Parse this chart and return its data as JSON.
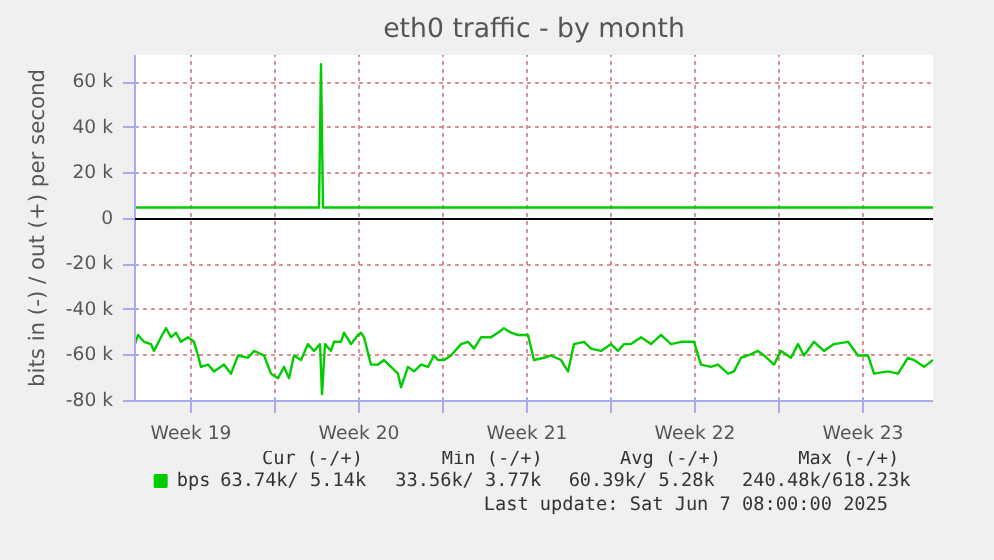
{
  "chart_data": {
    "type": "line",
    "title": "eth0 traffic - by month",
    "ylabel": "bits in (-) / out (+) per second",
    "xlim": [
      "2025-05-06T04:00",
      "2025-06-08T10:00"
    ],
    "ylim": [
      -80000,
      72000
    ],
    "xticks": [
      {
        "value": "2025-05-08T12:00",
        "label": "Week 19"
      },
      {
        "value": "2025-05-12",
        "label": null
      },
      {
        "value": "2025-05-15T12:00",
        "label": "Week 20"
      },
      {
        "value": "2025-05-19",
        "label": null
      },
      {
        "value": "2025-05-22T12:00",
        "label": "Week 21"
      },
      {
        "value": "2025-05-26",
        "label": null
      },
      {
        "value": "2025-05-29T12:00",
        "label": "Week 22"
      },
      {
        "value": "2025-06-02",
        "label": null
      },
      {
        "value": "2025-06-05T12:00",
        "label": "Week 23"
      }
    ],
    "yticks": [
      {
        "value": -80000,
        "label": "-80 k"
      },
      {
        "value": -60000,
        "label": "-60 k"
      },
      {
        "value": -40000,
        "label": "-40 k"
      },
      {
        "value": -20000,
        "label": "-20 k"
      },
      {
        "value": 0,
        "label": "0"
      },
      {
        "value": 20000,
        "label": "20 k"
      },
      {
        "value": 40000,
        "label": "40 k"
      },
      {
        "value": 60000,
        "label": "60 k"
      }
    ],
    "grid": true,
    "legend": "bottom",
    "marker": "none",
    "line_style": "solid",
    "ref_lines": [
      {
        "axis": "y",
        "value": 0,
        "label": null,
        "color": "#000000"
      }
    ],
    "series": [
      {
        "name": "bps",
        "color": "#00cc00",
        "x": [
          "2025-05-06T04:00",
          "2025-05-13T20:00",
          "2025-05-13T22:00",
          "2025-05-14T00:00",
          "2025-06-08T10:00"
        ],
        "values": [
          5000,
          5000,
          68000,
          5000,
          5000
        ]
      },
      {
        "color": "#00cc00",
        "x": [
          "2025-05-06T04:00",
          "2025-05-06T07:00",
          "2025-05-06T13:00",
          "2025-05-06T20:00",
          "2025-05-06T23:00",
          "2025-05-07T06:00",
          "2025-05-07T11:00",
          "2025-05-07T16:00",
          "2025-05-07T21:00",
          "2025-05-08T02:00",
          "2025-05-08T09:00",
          "2025-05-08T15:00",
          "2025-05-08T19:00",
          "2025-05-08T22:00",
          "2025-05-09T05:00",
          "2025-05-09T11:00",
          "2025-05-09T21:00",
          "2025-05-10T04:00",
          "2025-05-10T11:00",
          "2025-05-10T21:00",
          "2025-05-11T03:00",
          "2025-05-11T13:00",
          "2025-05-11T20:00",
          "2025-05-12T03:00",
          "2025-05-12T09:00",
          "2025-05-12T14:00",
          "2025-05-12T19:00",
          "2025-05-13T02:00",
          "2025-05-13T09:00",
          "2025-05-13T15:00",
          "2025-05-13T21:00",
          "2025-05-13T23:00",
          "2025-05-14T02:00",
          "2025-05-14T08:00",
          "2025-05-14T11:00",
          "2025-05-14T18:00",
          "2025-05-14T21:00",
          "2025-05-15T04:00",
          "2025-05-15T11:00",
          "2025-05-15T14:00",
          "2025-05-15T17:00",
          "2025-05-16T00:00",
          "2025-05-16T07:00",
          "2025-05-16T13:00",
          "2025-05-16T20:00",
          "2025-05-17T03:00",
          "2025-05-17T06:00",
          "2025-05-17T13:00",
          "2025-05-17T19:00",
          "2025-05-18T02:00",
          "2025-05-18T09:00",
          "2025-05-18T15:00",
          "2025-05-18T19:00",
          "2025-05-19T01:00",
          "2025-05-19T08:00",
          "2025-05-19T18:00",
          "2025-05-20T01:00",
          "2025-05-20T07:00",
          "2025-05-20T14:00",
          "2025-05-21T00:00",
          "2025-05-21T07:00",
          "2025-05-21T13:00",
          "2025-05-21T20:00",
          "2025-05-22T03:00",
          "2025-05-22T13:00",
          "2025-05-22T19:00",
          "2025-05-23T05:00",
          "2025-05-23T12:00",
          "2025-05-23T22:00",
          "2025-05-24T05:00",
          "2025-05-24T11:00",
          "2025-05-24T21:00",
          "2025-05-25T04:00",
          "2025-05-25T14:00",
          "2025-05-26T00:00",
          "2025-05-26T07:00",
          "2025-05-26T13:00",
          "2025-05-26T20:00",
          "2025-05-27T06:00",
          "2025-05-27T16:00",
          "2025-05-28T02:00",
          "2025-05-28T12:00",
          "2025-05-28T22:00",
          "2025-05-29T11:00",
          "2025-05-29T18:00",
          "2025-05-30T04:00",
          "2025-05-30T11:00",
          "2025-05-30T21:00",
          "2025-05-31T03:00",
          "2025-05-31T10:00",
          "2025-05-31T17:00",
          "2025-06-01T03:00",
          "2025-06-01T09:00",
          "2025-06-01T19:00",
          "2025-06-02T02:00",
          "2025-06-02T12:00",
          "2025-06-02T19:00",
          "2025-06-03T01:00",
          "2025-06-03T11:00",
          "2025-06-03T21:00",
          "2025-06-04T07:00",
          "2025-06-04T21:00",
          "2025-06-05T07:00",
          "2025-06-05T17:00",
          "2025-06-05T23:00",
          "2025-06-06T13:00",
          "2025-06-06T23:00",
          "2025-06-07T09:00",
          "2025-06-07T15:00",
          "2025-06-08T01:00",
          "2025-06-08T10:00"
        ],
        "values": [
          -55000,
          -51000,
          -54000,
          -55000,
          -58000,
          -52000,
          -48000,
          -52000,
          -50000,
          -54000,
          -52000,
          -54000,
          -60000,
          -65000,
          -64000,
          -67000,
          -64000,
          -68000,
          -60000,
          -61000,
          -58000,
          -60000,
          -68000,
          -70000,
          -65000,
          -70000,
          -60000,
          -62000,
          -55000,
          -58000,
          -55000,
          -77000,
          -55000,
          -58000,
          -54000,
          -54000,
          -50000,
          -55000,
          -51000,
          -50000,
          -52000,
          -64000,
          -64000,
          -62000,
          -65000,
          -68000,
          -74000,
          -65000,
          -67000,
          -64000,
          -65000,
          -60000,
          -62000,
          -62000,
          -60000,
          -55000,
          -54000,
          -57000,
          -52000,
          -52000,
          -50000,
          -48000,
          -50000,
          -51000,
          -51000,
          -62000,
          -61000,
          -60000,
          -62000,
          -67000,
          -55000,
          -54000,
          -57000,
          -58000,
          -55000,
          -58000,
          -55000,
          -55000,
          -52000,
          -55000,
          -51000,
          -55000,
          -54000,
          -54000,
          -64000,
          -65000,
          -64000,
          -68000,
          -67000,
          -61000,
          -60000,
          -58000,
          -60000,
          -64000,
          -58000,
          -61000,
          -55000,
          -60000,
          -54000,
          -58000,
          -55000,
          -54000,
          -60000,
          -60000,
          -68000,
          -67000,
          -68000,
          -61000,
          -62000,
          -65000,
          -62000
        ]
      }
    ],
    "annotations": [
      "Cur (-/+)",
      "Min (-/+)",
      "Avg (-/+)",
      "Max (-/+)",
      "63.74k/   5.14k",
      "33.56k/   3.77k",
      "60.39k/   5.28k",
      "240.48k/618.23k",
      "Last update:  Sat Jun  7 08:00:00 2025"
    ]
  }
}
